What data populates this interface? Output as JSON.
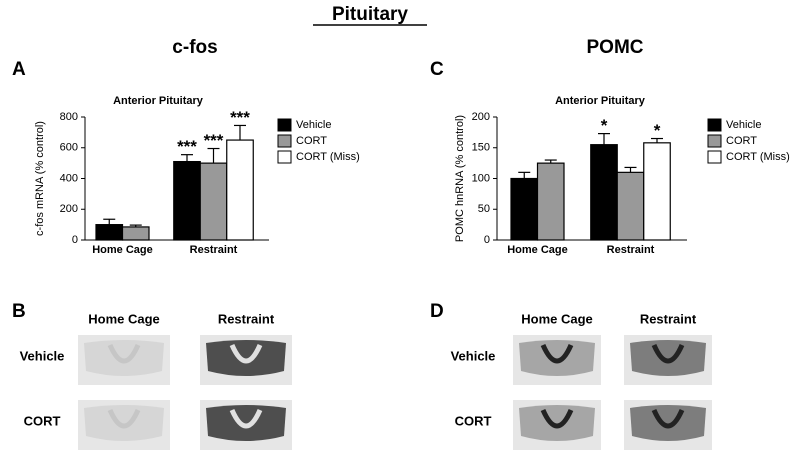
{
  "title": "Pituitary",
  "columns": [
    "c-fos",
    "POMC"
  ],
  "chart_data": [
    {
      "type": "bar",
      "panel": "A",
      "title": "Anterior Pituitary",
      "y_label": "c-fos mRNA (% control)",
      "categories": [
        "Home Cage",
        "Restraint"
      ],
      "ylim": [
        0,
        800
      ],
      "yticks": [
        0,
        200,
        400,
        600,
        800
      ],
      "series": [
        {
          "name": "Vehicle",
          "color": "#000000",
          "values": [
            100,
            510
          ],
          "errors": [
            35,
            45
          ],
          "significance": [
            null,
            "***"
          ]
        },
        {
          "name": "CORT",
          "color": "#999999",
          "values": [
            85,
            500
          ],
          "errors": [
            12,
            95
          ],
          "significance": [
            null,
            "***"
          ]
        },
        {
          "name": "CORT (Miss)",
          "color": "#ffffff",
          "values": [
            null,
            650
          ],
          "errors": [
            null,
            95
          ],
          "significance": [
            null,
            "***"
          ]
        }
      ]
    },
    {
      "type": "bar",
      "panel": "C",
      "title": "Anterior Pituitary",
      "y_label": "POMC hnRNA (% control)",
      "categories": [
        "Home Cage",
        "Restraint"
      ],
      "ylim": [
        0,
        200
      ],
      "yticks": [
        0,
        50,
        100,
        150,
        200
      ],
      "series": [
        {
          "name": "Vehicle",
          "color": "#000000",
          "values": [
            100,
            155
          ],
          "errors": [
            10,
            18
          ],
          "significance": [
            null,
            "*"
          ]
        },
        {
          "name": "CORT",
          "color": "#999999",
          "values": [
            125,
            110
          ],
          "errors": [
            5,
            8
          ],
          "significance": [
            null,
            null
          ]
        },
        {
          "name": "CORT (Miss)",
          "color": "#ffffff",
          "values": [
            null,
            158
          ],
          "errors": [
            null,
            7
          ],
          "significance": [
            null,
            "*"
          ]
        }
      ]
    }
  ],
  "image_panels": [
    {
      "panel": "B",
      "columns": [
        "Home Cage",
        "Restraint"
      ],
      "rows": [
        "Vehicle",
        "CORT"
      ]
    },
    {
      "panel": "D",
      "columns": [
        "Home Cage",
        "Restraint"
      ],
      "rows": [
        "Vehicle",
        "CORT"
      ]
    }
  ]
}
